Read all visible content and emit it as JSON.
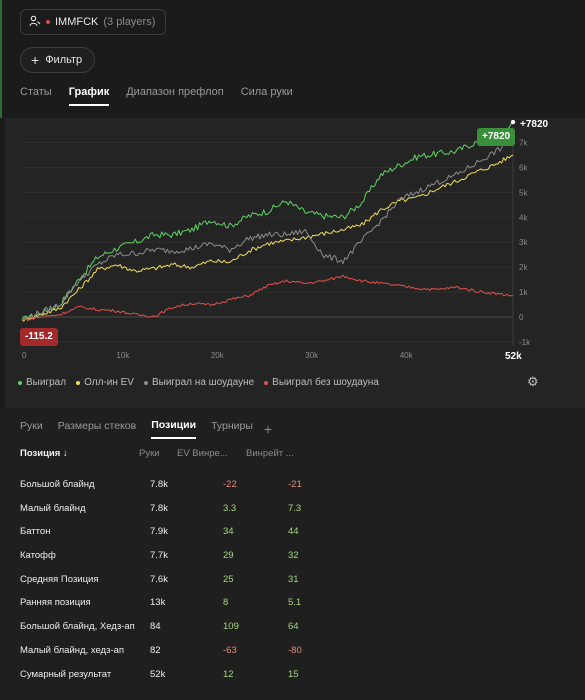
{
  "header": {
    "player_name": "IMMFCK",
    "player_count": "(3 players)",
    "filter_label": "Фильтр"
  },
  "tabs": [
    "Статы",
    "График",
    "Диапазон префлоп",
    "Сила руки"
  ],
  "active_tab": "График",
  "chart": {
    "end_badge": "+7820",
    "end_value": "+7820",
    "start_badge": "-115.2",
    "x_max_label": "52k",
    "legend": [
      "Выиграл",
      "Олл-ин EV",
      "Выиграл на шоудауне",
      "Выиграл без шоудауна"
    ],
    "colors": {
      "won": "#5fd35f",
      "allin_ev": "#f2dd55",
      "showdown": "#8c8c8c",
      "non_showdown": "#e2504d"
    }
  },
  "chart_data": {
    "type": "line",
    "x_tick_labels": [
      "0",
      "10k",
      "20k",
      "30k",
      "40k"
    ],
    "y_tick_labels": [
      "7k",
      "6k",
      "5k",
      "4k",
      "3k",
      "2k",
      "1k",
      "0",
      "-1k"
    ],
    "x": [
      0,
      2000,
      4000,
      6000,
      8000,
      10000,
      12000,
      14000,
      16000,
      18000,
      20000,
      22000,
      24000,
      26000,
      28000,
      30000,
      32000,
      34000,
      36000,
      38000,
      40000,
      42000,
      44000,
      46000,
      48000,
      50000,
      52000
    ],
    "ylim": [
      -1000,
      7500
    ],
    "xlim": [
      0,
      52000
    ],
    "series": [
      {
        "name": "Выиграл",
        "values": [
          -115,
          150,
          500,
          1500,
          2400,
          2750,
          3000,
          3300,
          3300,
          3500,
          3900,
          3650,
          4050,
          4250,
          4650,
          4200,
          4050,
          4000,
          4600,
          5700,
          6100,
          6450,
          6550,
          6650,
          7000,
          7050,
          7820
        ]
      },
      {
        "name": "Олл-ин EV",
        "values": [
          -115,
          100,
          350,
          1100,
          1900,
          2100,
          1850,
          1950,
          2100,
          2000,
          2250,
          2200,
          2650,
          2950,
          3050,
          3200,
          3350,
          3500,
          3700,
          4300,
          4650,
          4800,
          5150,
          5450,
          5800,
          6100,
          6500
        ]
      },
      {
        "name": "Выиграл на шоудауне",
        "values": [
          -115,
          200,
          500,
          1450,
          2100,
          2500,
          2550,
          2700,
          2650,
          2750,
          2950,
          2700,
          3150,
          3300,
          3300,
          3450,
          2450,
          2250,
          3050,
          3850,
          4700,
          5050,
          5400,
          5700,
          6150,
          6600,
          7100
        ]
      },
      {
        "name": "Выиграл без шоудауна",
        "values": [
          -115,
          0,
          100,
          400,
          300,
          250,
          100,
          30,
          400,
          550,
          480,
          700,
          850,
          1250,
          1450,
          1350,
          1450,
          1650,
          1450,
          1350,
          1250,
          1150,
          1100,
          1200,
          1050,
          950,
          850
        ]
      }
    ]
  },
  "lower_tabs": [
    "Руки",
    "Размеры стеков",
    "Позиции",
    "Турниры"
  ],
  "active_lower_tab": "Позиции",
  "table": {
    "headers": [
      "Позиция ↓",
      "Руки",
      "EV Винре...",
      "Винрейт ..."
    ],
    "rows": [
      {
        "name": "Большой блайнд",
        "hands": "7.8k",
        "ev": "-22",
        "win": "-21"
      },
      {
        "name": "Малый блайнд",
        "hands": "7.8k",
        "ev": "3.3",
        "win": "7.3"
      },
      {
        "name": "Баттон",
        "hands": "7.9k",
        "ev": "34",
        "win": "44"
      },
      {
        "name": "Катофф",
        "hands": "7.7k",
        "ev": "29",
        "win": "32"
      },
      {
        "name": "Средняя Позиция",
        "hands": "7.6k",
        "ev": "25",
        "win": "31"
      },
      {
        "name": "Ранняя позиция",
        "hands": "13k",
        "ev": "8",
        "win": "5.1"
      },
      {
        "name": "Большой блайнд, Хедз-ап",
        "hands": "84",
        "ev": "109",
        "win": "64"
      },
      {
        "name": "Малый блайнд, хедз-ап",
        "hands": "82",
        "ev": "-63",
        "win": "-80"
      },
      {
        "name": "Сумарный результат",
        "hands": "52k",
        "ev": "12",
        "win": "15"
      }
    ]
  }
}
